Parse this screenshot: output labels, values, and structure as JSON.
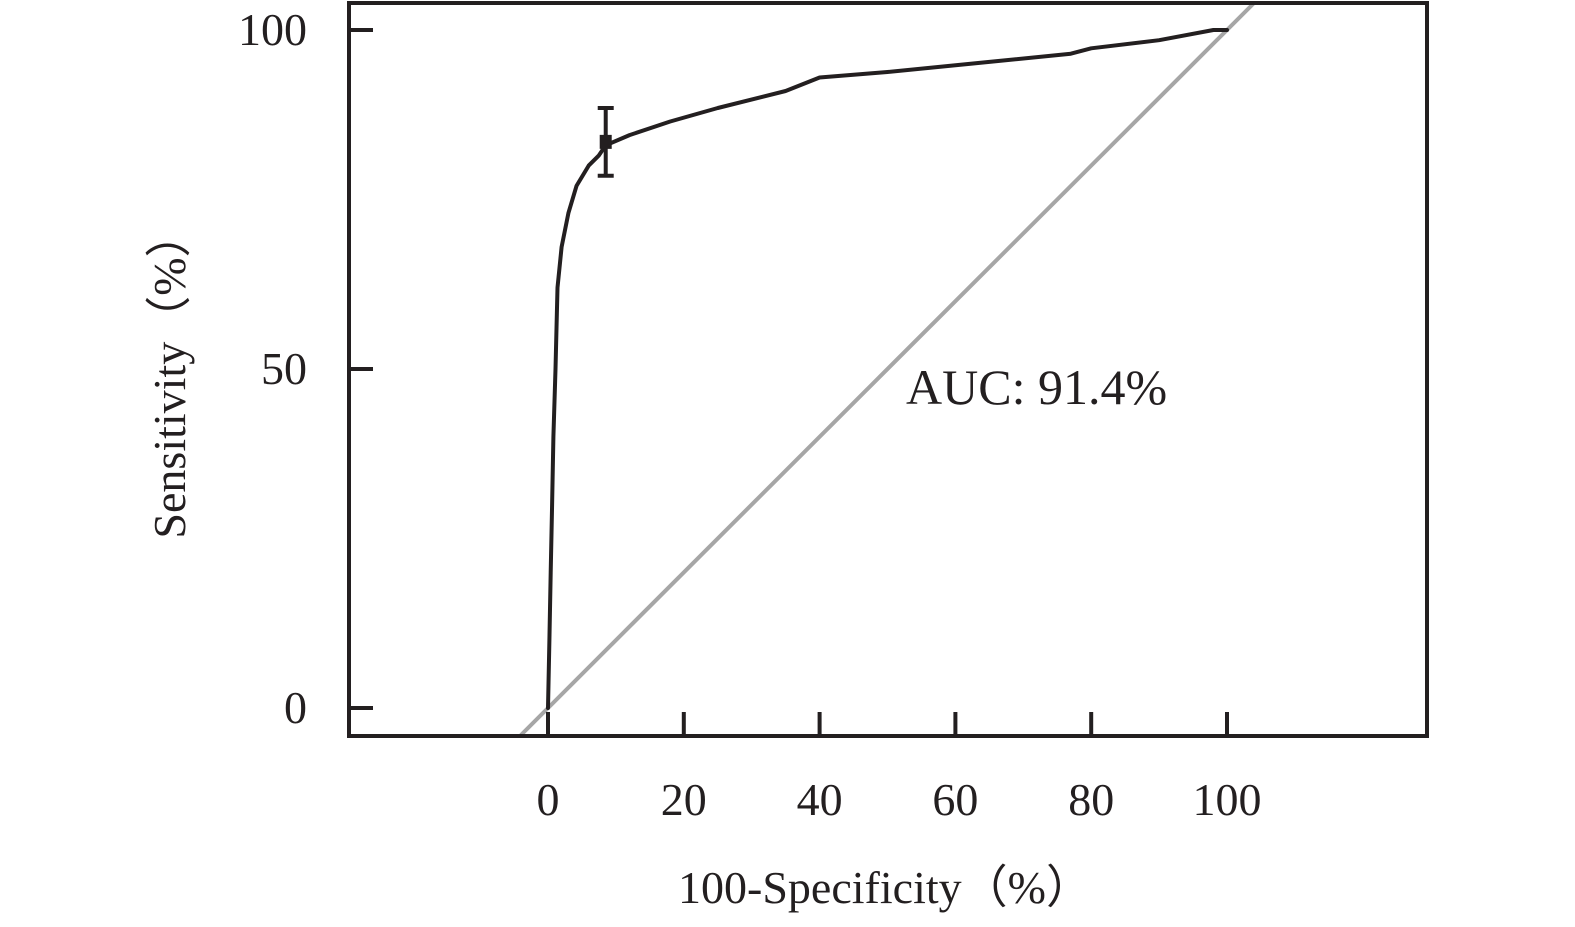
{
  "chart_data": {
    "type": "line",
    "xlabel": "100-Specificity（%）",
    "ylabel": "Sensitivity（%）",
    "xlim": [
      -30,
      130
    ],
    "ylim": [
      -4,
      104
    ],
    "x_ticks": [
      0,
      20,
      40,
      60,
      80,
      100
    ],
    "y_ticks": [
      0,
      50,
      100
    ],
    "grid": false,
    "legend": "none",
    "annotation": "AUC: 91.4%",
    "colors": {
      "roc": "#231f20",
      "reference": "#a6a6a6",
      "frame": "#231f20"
    },
    "series": [
      {
        "role": "roc",
        "points": [
          [
            0,
            0
          ],
          [
            0.2,
            10
          ],
          [
            0.4,
            20
          ],
          [
            0.6,
            30
          ],
          [
            0.8,
            40
          ],
          [
            1.1,
            50
          ],
          [
            1.4,
            62
          ],
          [
            2.0,
            68
          ],
          [
            3.0,
            73
          ],
          [
            4.2,
            77
          ],
          [
            6.0,
            80
          ],
          [
            7.5,
            81.5
          ],
          [
            8.5,
            83
          ],
          [
            12,
            84.5
          ],
          [
            18,
            86.5
          ],
          [
            25,
            88.5
          ],
          [
            35,
            91
          ],
          [
            40,
            93
          ],
          [
            50,
            93.8
          ],
          [
            65,
            95.3
          ],
          [
            77,
            96.5
          ],
          [
            80,
            97.3
          ],
          [
            90,
            98.5
          ],
          [
            98,
            100
          ],
          [
            100,
            100
          ]
        ]
      },
      {
        "role": "reference",
        "points": [
          [
            -4,
            -4
          ],
          [
            104,
            104
          ]
        ]
      }
    ],
    "cutoff_point": {
      "x": 8.5,
      "y": 83.5,
      "y_low": 78.5,
      "y_high": 88.5
    }
  }
}
